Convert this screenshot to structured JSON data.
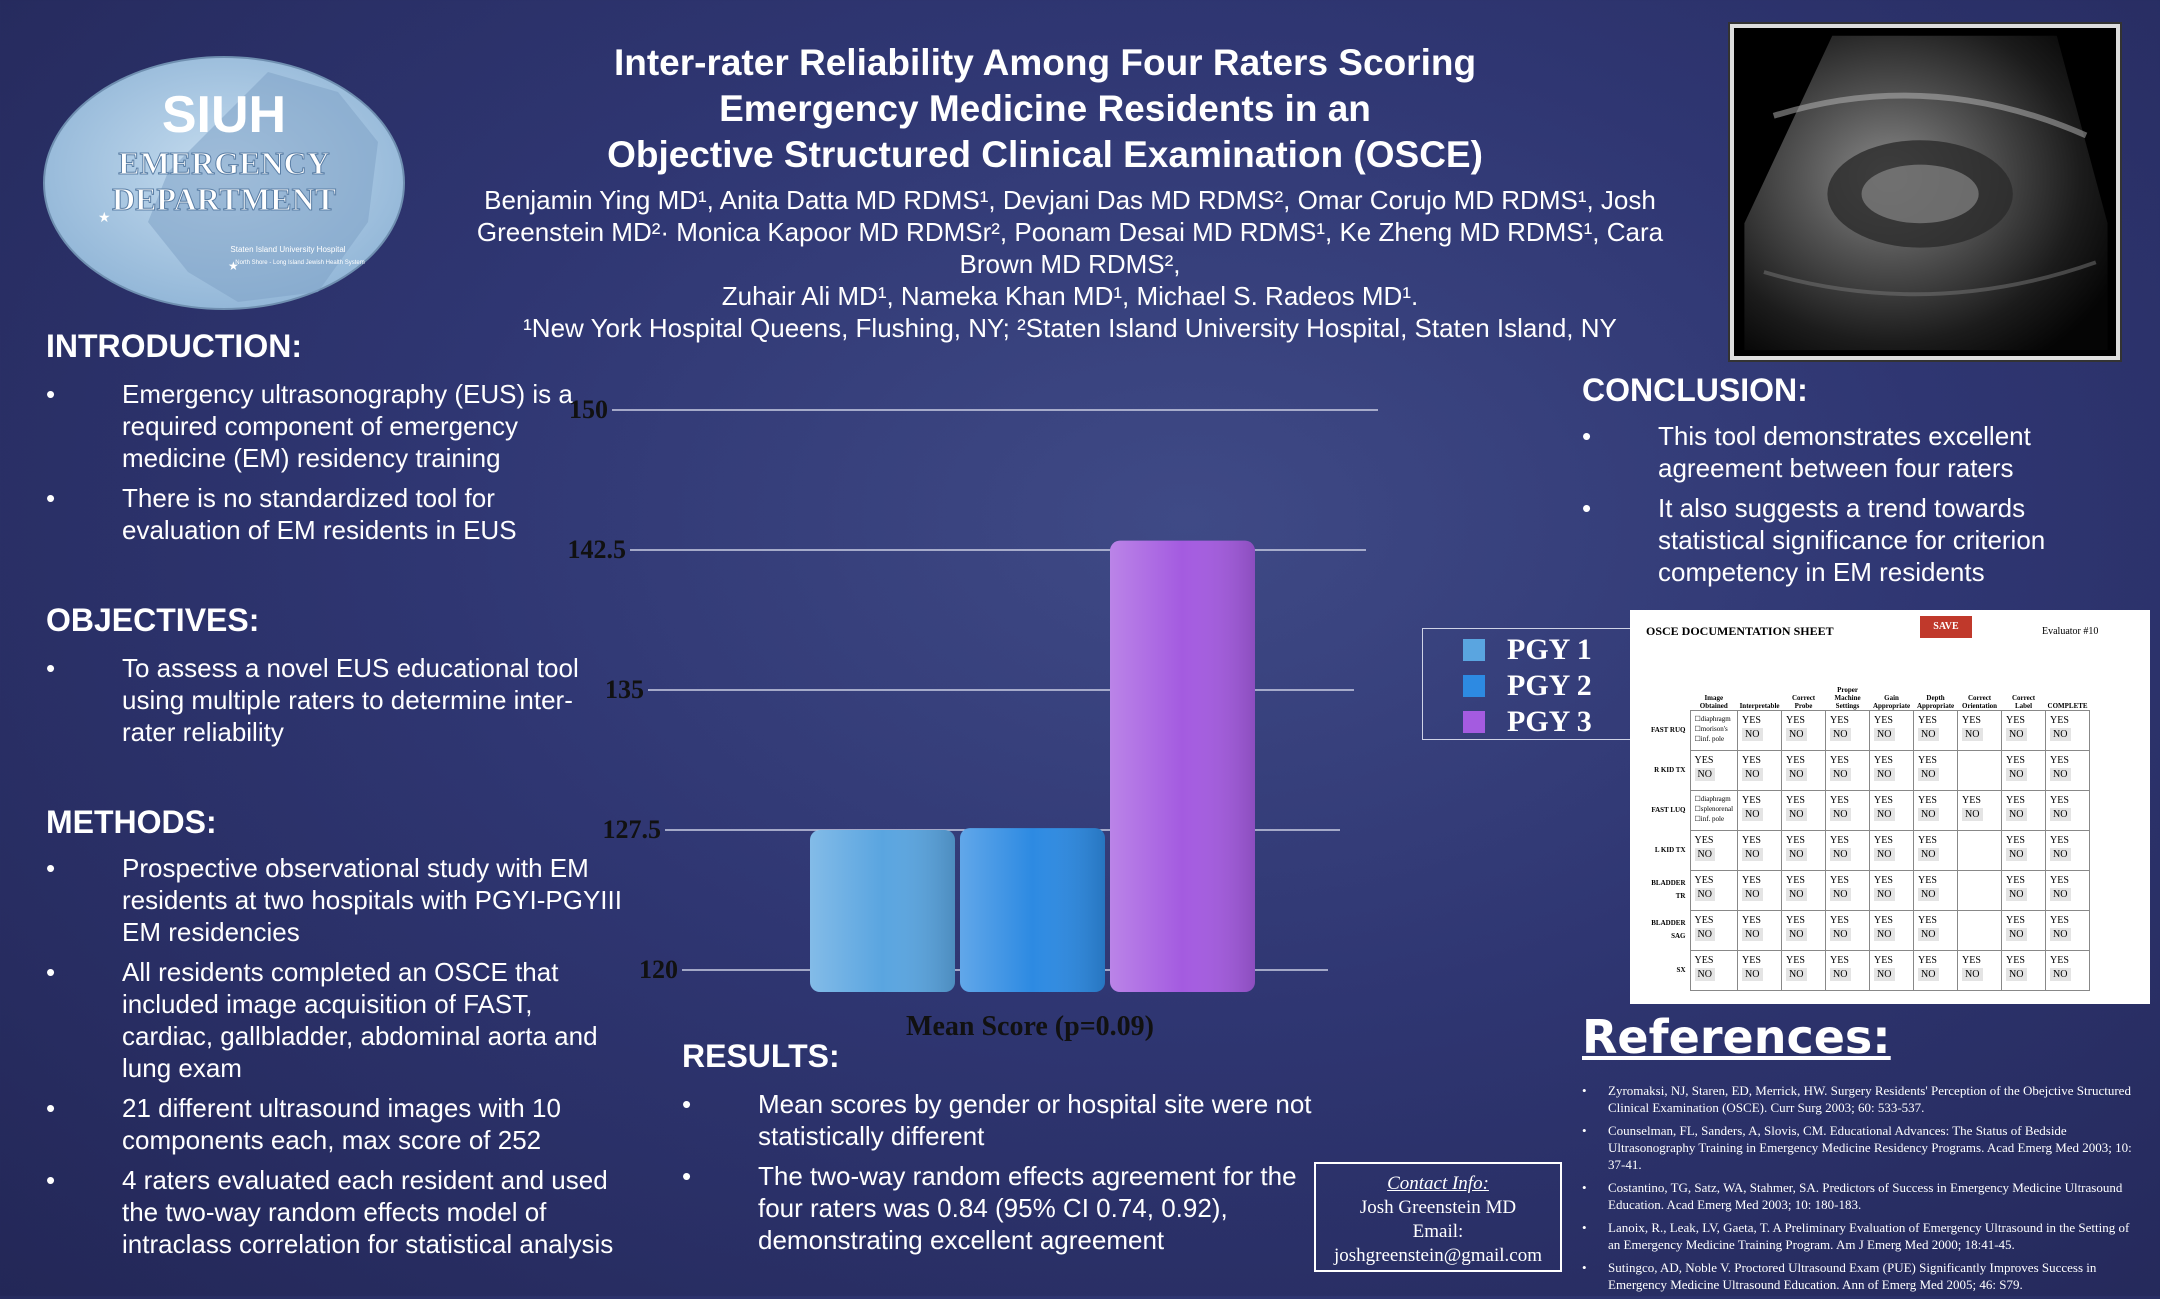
{
  "title": {
    "lines": [
      "Inter-rater Reliability Among Four Raters Scoring",
      "Emergency Medicine Residents in an",
      "Objective Structured Clinical Examination (OSCE)"
    ]
  },
  "authors": {
    "lines": [
      "Benjamin Ying MD¹, Anita Datta MD RDMS¹, Devjani Das MD RDMS², Omar Corujo MD RDMS¹,  Josh",
      "Greenstein MD²· Monica Kapoor MD RDMSr², Poonam Desai MD RDMS¹, Ke Zheng MD RDMS¹,    Cara",
      "Brown MD RDMS²,",
      "Zuhair Ali MD¹, Nameka Khan MD¹, Michael S. Radeos MD¹.",
      "¹New York Hospital Queens, Flushing, NY; ²Staten Island University Hospital, Staten Island, NY"
    ]
  },
  "logo": {
    "line1": "SIUH",
    "line2": "EMERGENCY",
    "line3": "DEPARTMENT",
    "small1": "Staten Island University Hospital",
    "small2": "North Shore - Long Island Jewish Health System"
  },
  "introduction": {
    "heading": "INTRODUCTION:",
    "bullets": [
      "Emergency ultrasonography (EUS) is a required component of emergency medicine (EM) residency training",
      "There is no standardized tool for evaluation of EM residents in EUS"
    ]
  },
  "objectives": {
    "heading": "OBJECTIVES:",
    "bullets": [
      "To assess a novel EUS educational tool using multiple raters to determine inter-rater reliability"
    ]
  },
  "methods": {
    "heading": "METHODS:",
    "bullets": [
      "Prospective observational study with EM residents at two hospitals with PGYI-PGYIII EM residencies",
      "All residents completed an OSCE that included  image acquisition of FAST, cardiac, gallbladder,  abdominal aorta and lung exam",
      "21 different ultrasound images with 10 components each, max score of 252",
      "4 raters evaluated each resident and used the two-way random effects model of intraclass correlation for statistical analysis"
    ]
  },
  "results": {
    "heading": "RESULTS:",
    "bullets": [
      "Mean scores by gender or hospital site were not statistically different",
      "The two-way random effects agreement for the four raters was 0.84 (95% CI 0.74, 0.92), demonstrating excellent agreement"
    ]
  },
  "conclusion": {
    "heading": "CONCLUSION:",
    "bullets": [
      "This tool demonstrates excellent agreement between four raters",
      "It also suggests a trend towards statistical significance for criterion competency in EM residents"
    ]
  },
  "bullet_char": "•",
  "chart_data": {
    "type": "bar",
    "title": "",
    "xlabel": "Mean Score (p=0.09)",
    "ylabel": "",
    "ylim": [
      120,
      150
    ],
    "yticks": [
      "120",
      "127.5",
      "135",
      "142.5",
      "150"
    ],
    "categories": [
      "Mean Score (p=0.09)"
    ],
    "series": [
      {
        "name": "PGY 1",
        "values": [
          127.5
        ],
        "color": "#5aa5e0"
      },
      {
        "name": "PGY 2",
        "values": [
          127.6
        ],
        "color": "#2d8ae2"
      },
      {
        "name": "PGY 3",
        "values": [
          143.0
        ],
        "color": "#a45be0"
      }
    ],
    "grid": true,
    "legend": "right"
  },
  "osce": {
    "title": "OSCE DOCUMENTATION SHEET",
    "save": "SAVE",
    "evaluator": "Evaluator #10",
    "columns": [
      "Image Obtained",
      "Interpretable",
      "Correct Probe",
      "Proper Machine Settings",
      "Gain Appropriate",
      "Depth Appropriate",
      "Correct Orientation",
      "Correct Label",
      "COMPLETE"
    ],
    "rows": [
      {
        "label": "FAST RUQ",
        "cells": [
          "diaphragm / morison's / inf. pole",
          "YES NO",
          "YES NO",
          "YES NO",
          "YES NO",
          "YES NO",
          "YES NO",
          "YES NO",
          "YES NO"
        ]
      },
      {
        "label": "R KID TX",
        "cells": [
          "YES NO",
          "YES NO",
          "YES NO",
          "YES NO",
          "YES NO",
          "YES NO",
          "",
          "YES NO",
          "YES NO"
        ]
      },
      {
        "label": "FAST LUQ",
        "cells": [
          "diaphragm / splenorenal / inf. pole",
          "YES NO",
          "YES NO",
          "YES NO",
          "YES NO",
          "YES NO",
          "YES NO",
          "YES NO",
          "YES NO"
        ]
      },
      {
        "label": "L KID TX",
        "cells": [
          "YES NO",
          "YES NO",
          "YES NO",
          "YES NO",
          "YES NO",
          "YES NO",
          "",
          "YES NO",
          "YES NO"
        ]
      },
      {
        "label": "BLADDER TR",
        "cells": [
          "YES NO",
          "YES NO",
          "YES NO",
          "YES NO",
          "YES NO",
          "YES NO",
          "",
          "YES NO",
          "YES NO"
        ]
      },
      {
        "label": "BLADDER SAG",
        "cells": [
          "YES NO",
          "YES NO",
          "YES NO",
          "YES NO",
          "YES NO",
          "YES NO",
          "",
          "YES NO",
          "YES NO"
        ]
      },
      {
        "label": "SX",
        "cells": [
          "YES NO",
          "YES NO",
          "YES NO",
          "YES NO",
          "YES NO",
          "YES NO",
          "YES NO",
          "YES NO",
          "YES NO"
        ]
      }
    ]
  },
  "references": {
    "heading": "References:",
    "items": [
      "Zyromaksi, NJ, Staren, ED, Merrick, HW. Surgery Residents' Perception of the Obejctive Structured Clinical Examination (OSCE). Curr Surg 2003; 60: 533-537.",
      "Counselman, FL, Sanders, A, Slovis, CM. Educational Advances: The Status of Bedside Ultrasonography Training in Emergency Medicine Residency Programs. Acad Emerg Med 2003; 10: 37-41.",
      "Costantino, TG, Satz, WA, Stahmer, SA. Predictors of Success in Emergency Medicine Ultrasound Education. Acad Emerg Med 2003; 10: 180-183.",
      "Lanoix, R., Leak, LV, Gaeta, T. A Preliminary Evaluation of Emergency Ultrasound in the Setting of an Emergency Medicine Training Program. Am J Emerg Med 2000; 18:41-45.",
      "Sutingco, AD, Noble V. Proctored Ultrasound Exam (PUE) Significantly Improves Success in Emergency Medicine Ultrasound Education. Ann of Emerg Med 2005; 46: S79."
    ]
  },
  "contact": {
    "heading": "Contact Info:",
    "name": "Josh Greenstein MD",
    "label": "Email:",
    "email": "joshgreenstein@gmail.com"
  }
}
